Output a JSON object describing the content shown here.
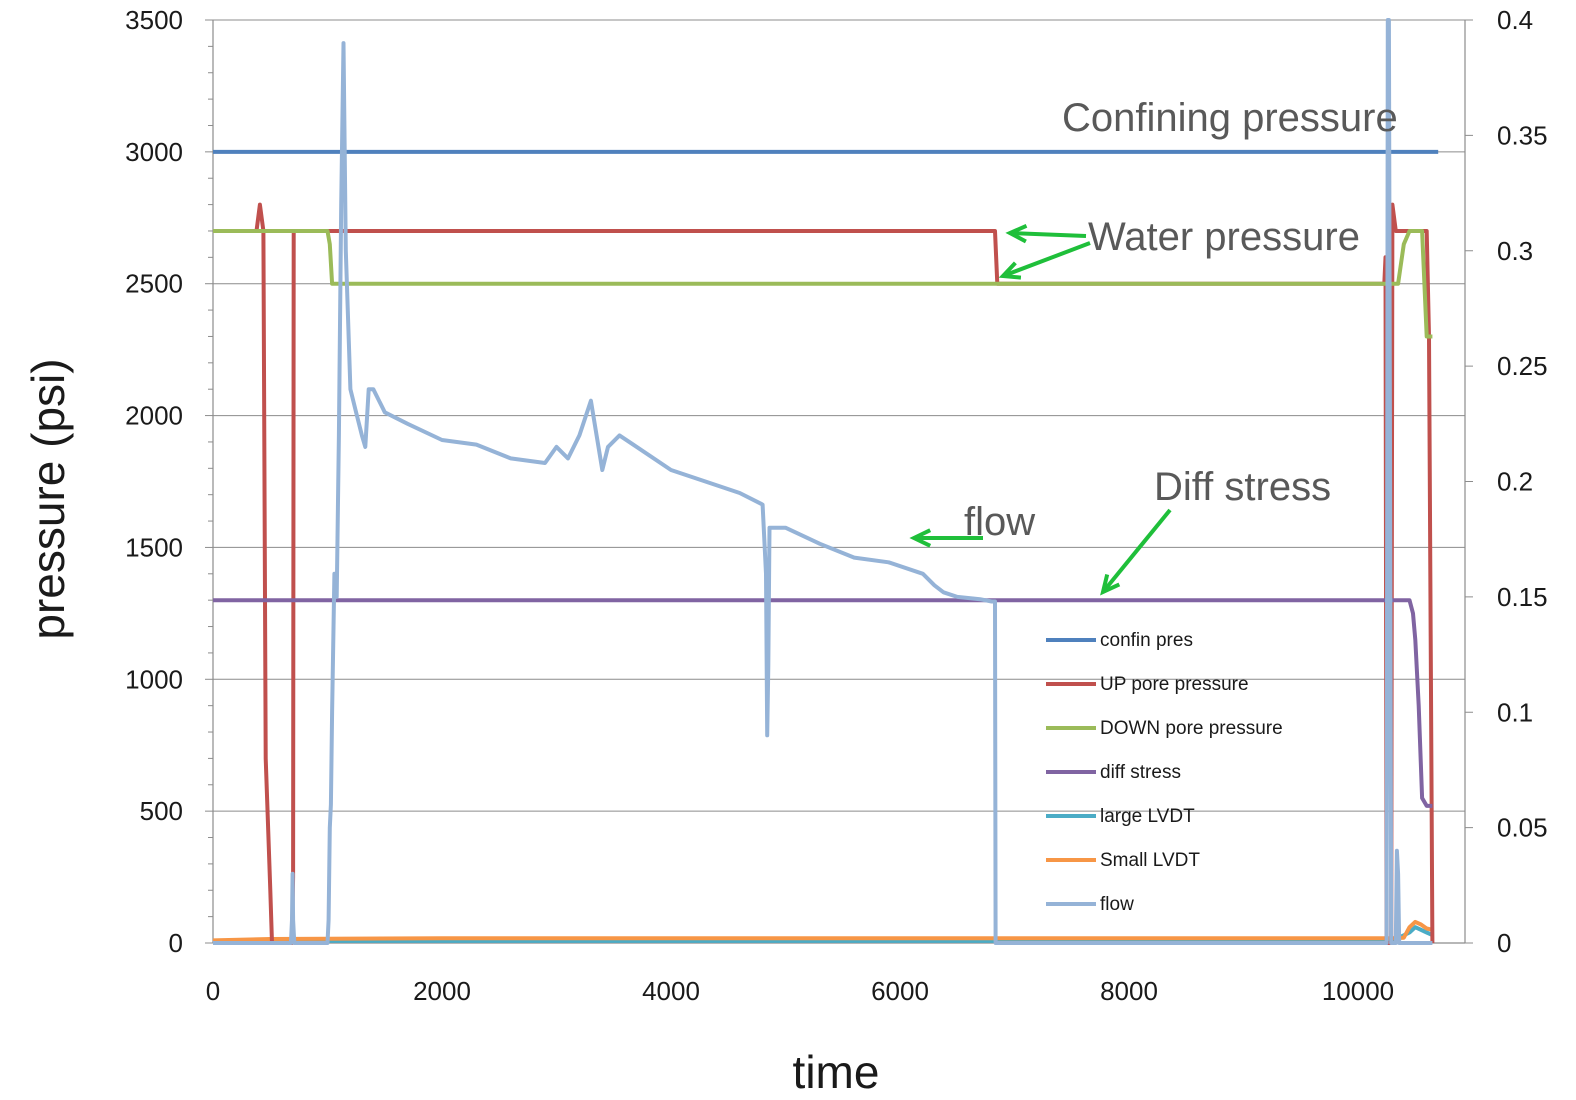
{
  "chart_data": {
    "type": "line",
    "xlabel": "time",
    "ylabel": "pressure (psi)",
    "xlim": [
      0,
      10800
    ],
    "ylim": [
      0,
      3500
    ],
    "y2lim": [
      0,
      0.4
    ],
    "x_ticks": [
      "0",
      "2000",
      "4000",
      "6000",
      "8000",
      "10000"
    ],
    "y_ticks": [
      "0",
      "500",
      "1000",
      "1500",
      "2000",
      "2500",
      "3000",
      "3500"
    ],
    "y2_ticks": [
      "0",
      "0.05",
      "0.1",
      "0.15",
      "0.2",
      "0.25",
      "0.3",
      "0.35",
      "0.4"
    ],
    "grid": "horizontal",
    "legend_position": "lower-right inside plot",
    "series": [
      {
        "name": "confin pres",
        "color": "#4f81bd",
        "axis": "left",
        "x": [
          0,
          1000,
          2000,
          3000,
          4000,
          5000,
          6000,
          7000,
          8000,
          9000,
          10000,
          10700
        ],
        "y": [
          3000,
          3000,
          3000,
          3000,
          3000,
          3000,
          3000,
          3000,
          3000,
          3000,
          3000,
          3000
        ]
      },
      {
        "name": "UP pore pressure",
        "color": "#c0504d",
        "axis": "left",
        "x": [
          0,
          380,
          410,
          440,
          460,
          500,
          515,
          690,
          700,
          705,
          720,
          1000,
          2000,
          4000,
          6000,
          6830,
          6850,
          6860,
          8000,
          10000,
          10230,
          10240,
          10250,
          10290,
          10300,
          10330,
          10500,
          10600,
          10620,
          10650
        ],
        "y": [
          2700,
          2700,
          2800,
          2700,
          700,
          200,
          0,
          0,
          250,
          2700,
          2700,
          2700,
          2700,
          2700,
          2700,
          2700,
          2500,
          2500,
          2500,
          2500,
          2500,
          2600,
          0,
          0,
          2800,
          2700,
          2700,
          2700,
          2300,
          0
        ]
      },
      {
        "name": "DOWN pore pressure",
        "color": "#9bbb59",
        "axis": "left",
        "x": [
          0,
          1000,
          1020,
          1040,
          1060,
          2000,
          4000,
          6000,
          8000,
          10000,
          10300,
          10350,
          10400,
          10450,
          10500,
          10560,
          10600,
          10650
        ],
        "y": [
          2700,
          2700,
          2650,
          2500,
          2500,
          2500,
          2500,
          2500,
          2500,
          2500,
          2500,
          2500,
          2650,
          2700,
          2700,
          2700,
          2300,
          2300
        ]
      },
      {
        "name": "diff stress",
        "color": "#8064a2",
        "axis": "left",
        "x": [
          0,
          1000,
          2000,
          4000,
          6000,
          8000,
          10000,
          10450,
          10480,
          10500,
          10530,
          10560,
          10600,
          10650
        ],
        "y": [
          1300,
          1300,
          1300,
          1300,
          1300,
          1300,
          1300,
          1300,
          1250,
          1150,
          900,
          550,
          520,
          520
        ]
      },
      {
        "name": "large LVDT",
        "color": "#4bacc6",
        "axis": "left",
        "x": [
          0,
          1000,
          4000,
          8000,
          10300,
          10450,
          10500,
          10600,
          10650
        ],
        "y": [
          5,
          8,
          8,
          8,
          8,
          40,
          60,
          40,
          30
        ]
      },
      {
        "name": "Small LVDT",
        "color": "#f79646",
        "axis": "left",
        "x": [
          0,
          500,
          2000,
          4000,
          6000,
          8000,
          10300,
          10400,
          10450,
          10500,
          10550,
          10600,
          10650
        ],
        "y": [
          10,
          15,
          18,
          18,
          18,
          18,
          18,
          20,
          60,
          80,
          70,
          55,
          50
        ]
      },
      {
        "name": "flow",
        "color": "#95b3d7",
        "axis": "right",
        "x": [
          0,
          680,
          690,
          695,
          700,
          710,
          1000,
          1010,
          1020,
          1030,
          1040,
          1060,
          1080,
          1100,
          1120,
          1140,
          1160,
          1180,
          1200,
          1250,
          1300,
          1330,
          1360,
          1400,
          1500,
          1700,
          2000,
          2300,
          2600,
          2900,
          3000,
          3100,
          3200,
          3300,
          3350,
          3400,
          3450,
          3550,
          3700,
          4000,
          4300,
          4600,
          4800,
          4830,
          4840,
          4850,
          4860,
          5000,
          5300,
          5600,
          5900,
          6200,
          6300,
          6380,
          6500,
          6700,
          6800,
          6830,
          6835,
          6840,
          7000,
          10000,
          10100,
          10150,
          10200,
          10250,
          10260,
          10270,
          10280,
          10290,
          10300,
          10330,
          10340,
          10350,
          10360,
          10650
        ],
        "y": [
          0,
          0,
          0.01,
          0.03,
          0.01,
          0,
          0,
          0.01,
          0.05,
          0.06,
          0.1,
          0.16,
          0.15,
          0.22,
          0.32,
          0.39,
          0.3,
          0.27,
          0.24,
          0.23,
          0.22,
          0.215,
          0.24,
          0.24,
          0.23,
          0.225,
          0.218,
          0.216,
          0.21,
          0.208,
          0.215,
          0.21,
          0.22,
          0.235,
          0.22,
          0.205,
          0.215,
          0.22,
          0.215,
          0.205,
          0.2,
          0.195,
          0.19,
          0.16,
          0.09,
          0.12,
          0.18,
          0.18,
          0.173,
          0.167,
          0.165,
          0.16,
          0.155,
          0.152,
          0.15,
          0.149,
          0.148,
          0.148,
          0,
          0,
          0,
          0,
          0,
          0,
          0,
          0,
          0.4,
          0.4,
          0.2,
          0,
          0,
          0,
          0.04,
          0.03,
          0,
          0
        ]
      }
    ]
  },
  "annotations": {
    "confining": "Confining pressure",
    "water": "Water pressure",
    "diff": "Diff stress",
    "flow": "flow"
  }
}
